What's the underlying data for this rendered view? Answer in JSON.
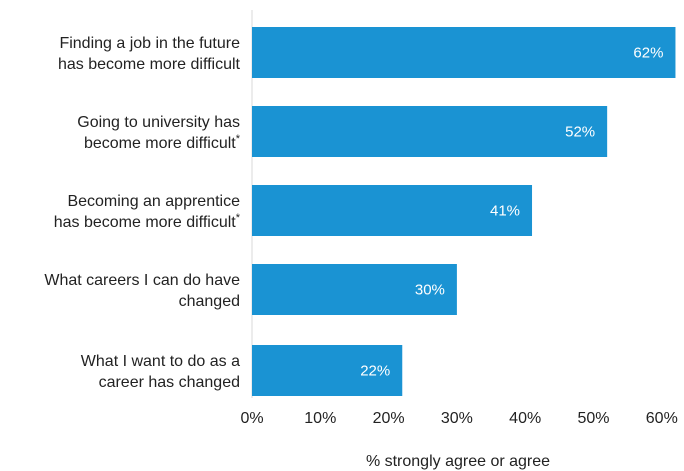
{
  "chart_data": {
    "type": "bar",
    "orientation": "horizontal",
    "categories": [
      [
        "Finding a job in the future",
        "has become more difficult"
      ],
      [
        "Going to university has",
        "become more difficult*"
      ],
      [
        "Becoming an apprentice",
        "has become more difficult*"
      ],
      [
        "What careers I can do have",
        "changed"
      ],
      [
        "What I want to do as a",
        "career has changed"
      ]
    ],
    "values": [
      62,
      52,
      41,
      30,
      22
    ],
    "data_labels": [
      "62%",
      "52%",
      "41%",
      "30%",
      "22%"
    ],
    "xticks": [
      "0%",
      "10%",
      "20%",
      "30%",
      "40%",
      "50%",
      "60%"
    ],
    "xlim": [
      0,
      60
    ],
    "xlabel": "% strongly agree or agree",
    "grid": false,
    "colors": {
      "bar": "#1a93d3",
      "axis": "#d9d9d9"
    }
  }
}
